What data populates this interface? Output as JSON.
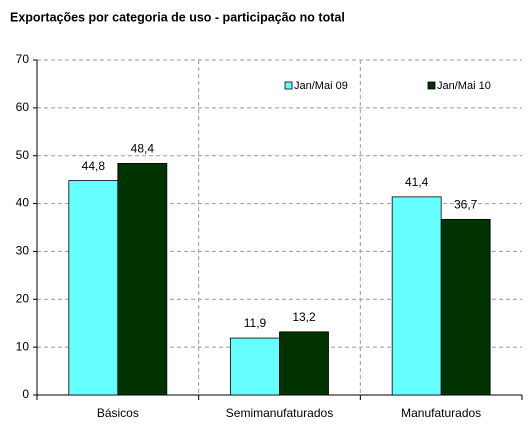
{
  "chart_data": {
    "type": "bar",
    "title": "Exportações por categoria de uso - participação no total",
    "categories": [
      "Básicos",
      "Semimanufaturados",
      "Manufaturados"
    ],
    "series": [
      {
        "name": "Jan/Mai 09",
        "color": "#66ffff",
        "values": [
          44.8,
          11.9,
          41.4
        ],
        "value_labels": [
          "44,8",
          "11,9",
          "41,4"
        ]
      },
      {
        "name": "Jan/Mai 10",
        "color": "#003300",
        "values": [
          48.4,
          13.2,
          36.7
        ],
        "value_labels": [
          "48,4",
          "13,2",
          "36,7"
        ]
      }
    ],
    "ylim": [
      0,
      70
    ],
    "yticks": [
      0,
      10,
      20,
      30,
      40,
      50,
      60,
      70
    ],
    "grid": true,
    "legend": "top-right"
  }
}
